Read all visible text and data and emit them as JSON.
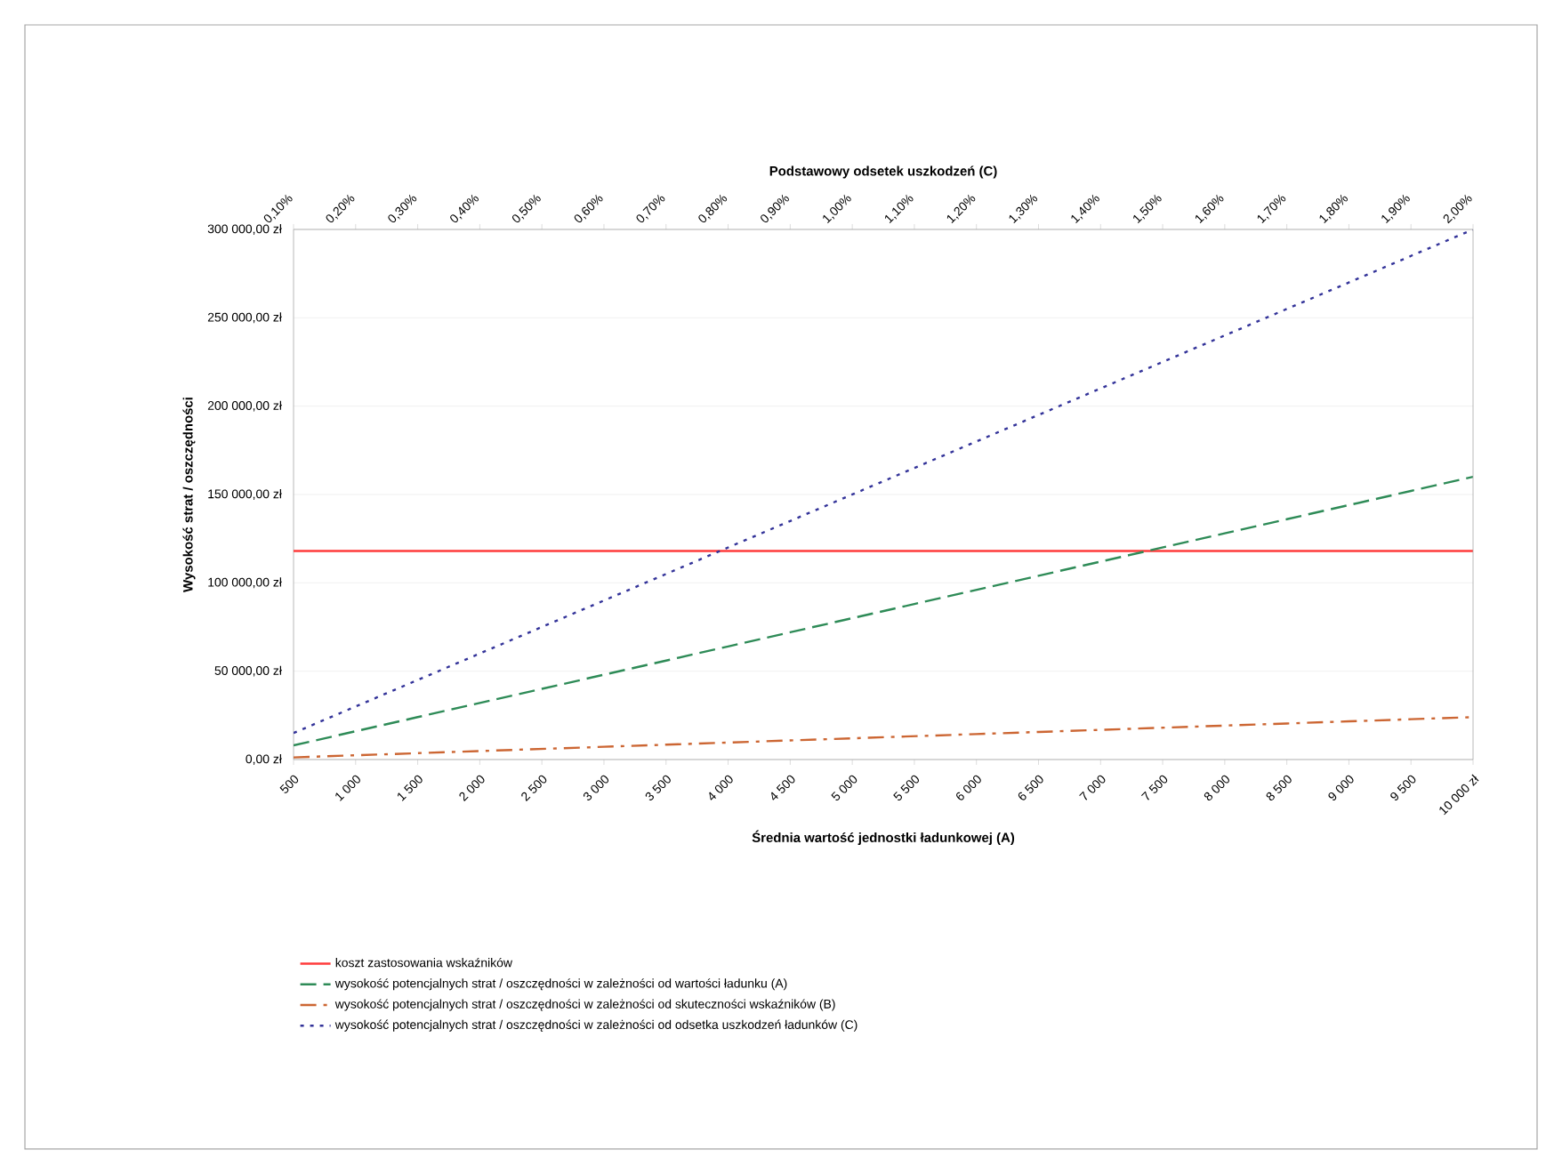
{
  "chart_data": {
    "type": "line",
    "xlabel": "Średnia wartość jednostki ładunkowej (A)",
    "ylabel": "Wysokość strat / oszczędności",
    "x2label": "Podstawowy odsetek uszkodzeń (C)",
    "categories": [
      "500",
      "1 000",
      "1 500",
      "2 000",
      "2 500",
      "3 000",
      "3 500",
      "4 000",
      "4 500",
      "5 000",
      "5 500",
      "6 000",
      "6 500",
      "7 000",
      "7 500",
      "8 000",
      "8 500",
      "9 000",
      "9 500",
      "10 000 zł"
    ],
    "x2lim": [
      0.1,
      2.0
    ],
    "x2ticks": [
      {
        "value": 0.1,
        "label": "0,10%"
      },
      {
        "value": 0.2,
        "label": "0,20%"
      },
      {
        "value": 0.3,
        "label": "0,30%"
      },
      {
        "value": 0.4,
        "label": "0,40%"
      },
      {
        "value": 0.5,
        "label": "0,50%"
      },
      {
        "value": 0.6,
        "label": "0,60%"
      },
      {
        "value": 0.7,
        "label": "0,70%"
      },
      {
        "value": 0.8,
        "label": "0,80%"
      },
      {
        "value": 0.9,
        "label": "0,90%"
      },
      {
        "value": 1.0,
        "label": "1,00%"
      },
      {
        "value": 1.1,
        "label": "1,10%"
      },
      {
        "value": 1.2,
        "label": "1,20%"
      },
      {
        "value": 1.3,
        "label": "1,30%"
      },
      {
        "value": 1.4,
        "label": "1,40%"
      },
      {
        "value": 1.5,
        "label": "1,50%"
      },
      {
        "value": 1.6,
        "label": "1,60%"
      },
      {
        "value": 1.7,
        "label": "1,70%"
      },
      {
        "value": 1.8,
        "label": "1,80%"
      },
      {
        "value": 1.9,
        "label": "1,90%"
      },
      {
        "value": 2.0,
        "label": "2,00%"
      }
    ],
    "ylim": [
      0,
      300000
    ],
    "yticks": [
      {
        "value": 0,
        "label": "0,00 zł"
      },
      {
        "value": 50000,
        "label": "50 000,00 zł"
      },
      {
        "value": 100000,
        "label": "100 000,00 zł"
      },
      {
        "value": 150000,
        "label": "150 000,00 zł"
      },
      {
        "value": 200000,
        "label": "200 000,00 zł"
      },
      {
        "value": 250000,
        "label": "250 000,00 zł"
      },
      {
        "value": 300000,
        "label": "300 000,00 zł"
      }
    ],
    "grid": "y",
    "legend": "bottom",
    "marker": "none",
    "series": [
      {
        "name": "koszt zastosowania wskaźników",
        "color": "#ff3b3b",
        "line_style": "solid",
        "values": [
          118000,
          118000,
          118000,
          118000,
          118000,
          118000,
          118000,
          118000,
          118000,
          118000,
          118000,
          118000,
          118000,
          118000,
          118000,
          118000,
          118000,
          118000,
          118000,
          118000
        ]
      },
      {
        "name": "wysokość potencjalnych strat / oszczędności w zależności od wartości ładunku (A)",
        "color": "#2e8b57",
        "line_style": "dashed",
        "values": [
          8000,
          16000,
          24000,
          32000,
          40000,
          48000,
          56000,
          64000,
          72000,
          80000,
          88000,
          96000,
          104000,
          112000,
          120000,
          128000,
          136000,
          144000,
          152000,
          160000
        ]
      },
      {
        "name": "wysokość potencjalnych strat / oszczędności w zależności od skuteczności wskaźników (B)",
        "color": "#cc6633",
        "line_style": "dashdot",
        "values": [
          1200,
          2400,
          3600,
          4800,
          6000,
          7200,
          8400,
          9600,
          10800,
          12000,
          13200,
          14400,
          15600,
          16800,
          18000,
          19200,
          20400,
          21600,
          22800,
          24000
        ]
      },
      {
        "name": "wysokość potencjalnych strat / oszczędności w zależności od odsetka uszkodzeń ładunków (C)",
        "color": "#333399",
        "line_style": "dotted",
        "values": [
          15000,
          30000,
          45000,
          60000,
          75000,
          90000,
          105000,
          120000,
          135000,
          150000,
          165000,
          180000,
          195000,
          210000,
          225000,
          240000,
          255000,
          270000,
          285000,
          300000
        ]
      }
    ]
  }
}
